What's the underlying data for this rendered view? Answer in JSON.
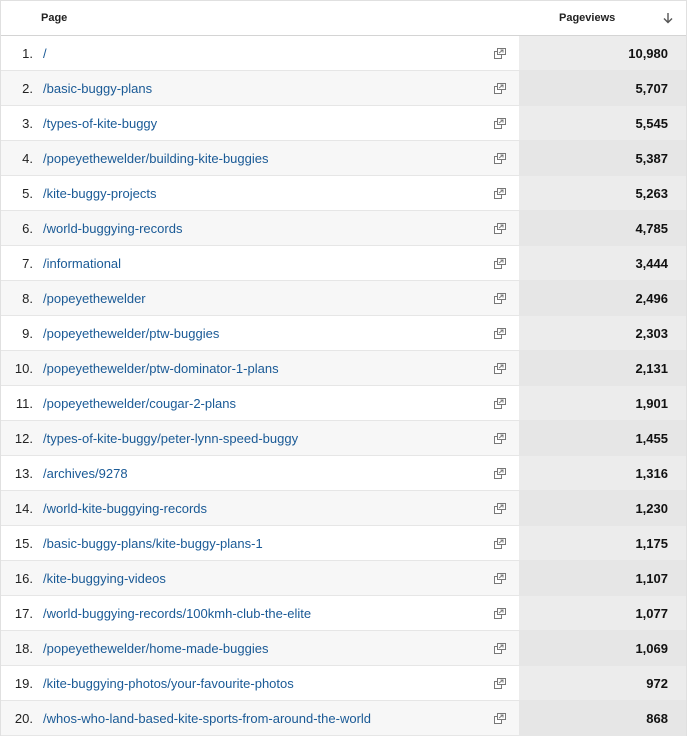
{
  "header": {
    "page_label": "Page",
    "pageviews_label": "Pageviews",
    "sort_icon": "sort-descending-icon"
  },
  "rows": [
    {
      "rank": "1.",
      "page": "/",
      "pageviews": "10,980"
    },
    {
      "rank": "2.",
      "page": "/basic-buggy-plans",
      "pageviews": "5,707"
    },
    {
      "rank": "3.",
      "page": "/types-of-kite-buggy",
      "pageviews": "5,545"
    },
    {
      "rank": "4.",
      "page": "/popeyethewelder/building-kite-buggies",
      "pageviews": "5,387"
    },
    {
      "rank": "5.",
      "page": "/kite-buggy-projects",
      "pageviews": "5,263"
    },
    {
      "rank": "6.",
      "page": "/world-buggying-records",
      "pageviews": "4,785"
    },
    {
      "rank": "7.",
      "page": "/informational",
      "pageviews": "3,444"
    },
    {
      "rank": "8.",
      "page": "/popeyethewelder",
      "pageviews": "2,496"
    },
    {
      "rank": "9.",
      "page": "/popeyethewelder/ptw-buggies",
      "pageviews": "2,303"
    },
    {
      "rank": "10.",
      "page": "/popeyethewelder/ptw-dominator-1-plans",
      "pageviews": "2,131"
    },
    {
      "rank": "11.",
      "page": "/popeyethewelder/cougar-2-plans",
      "pageviews": "1,901"
    },
    {
      "rank": "12.",
      "page": "/types-of-kite-buggy/peter-lynn-speed-buggy",
      "pageviews": "1,455"
    },
    {
      "rank": "13.",
      "page": "/archives/9278",
      "pageviews": "1,316"
    },
    {
      "rank": "14.",
      "page": "/world-kite-buggying-records",
      "pageviews": "1,230"
    },
    {
      "rank": "15.",
      "page": "/basic-buggy-plans/kite-buggy-plans-1",
      "pageviews": "1,175"
    },
    {
      "rank": "16.",
      "page": "/kite-buggying-videos",
      "pageviews": "1,107"
    },
    {
      "rank": "17.",
      "page": "/world-buggying-records/100kmh-club-the-elite",
      "pageviews": "1,077"
    },
    {
      "rank": "18.",
      "page": "/popeyethewelder/home-made-buggies",
      "pageviews": "1,069"
    },
    {
      "rank": "19.",
      "page": "/kite-buggying-photos/your-favourite-photos",
      "pageviews": "972"
    },
    {
      "rank": "20.",
      "page": "/whos-who-land-based-kite-sports-from-around-the-world",
      "pageviews": "868"
    }
  ],
  "row_icon": "open-in-new-window-icon"
}
